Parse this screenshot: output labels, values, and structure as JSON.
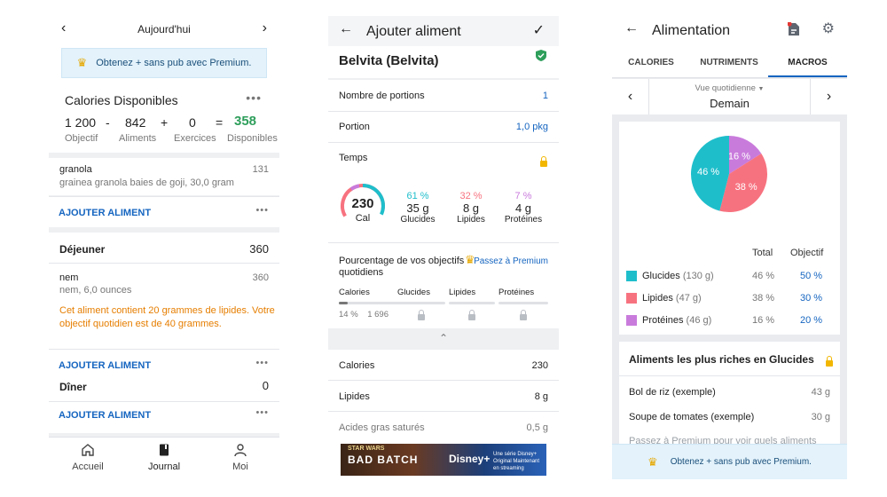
{
  "colors": {
    "accent": "#1565c0",
    "green": "#2e9e5b",
    "orange": "#e67e00",
    "teal": "#1fbecb",
    "coral": "#f7727f",
    "purple": "#c97bdc",
    "premium_bg": "#e3f2fb"
  },
  "journal": {
    "header": {
      "title": "Aujourd'hui",
      "prev_icon": "chevron-left-icon",
      "next_icon": "chevron-right-icon"
    },
    "premium_banner": "Obtenez + sans pub avec Premium.",
    "calories": {
      "title": "Calories Disponibles",
      "objective": "1 200",
      "objective_label": "Objectif",
      "minus": "-",
      "foods": "842",
      "foods_label": "Aliments",
      "plus": "+",
      "exercise": "0",
      "exercise_label": "Exercices",
      "equals": "=",
      "available": "358",
      "available_label": "Disponibles"
    },
    "breakfast_item": {
      "name": "granola",
      "detail": "grainea granola baies de goji, 30,0 gram",
      "calories": "131"
    },
    "add_food": "AJOUTER ALIMENT",
    "lunch": {
      "title": "Déjeuner",
      "total": "360",
      "item": {
        "name": "nem",
        "detail": "nem, 6,0 ounces",
        "calories": "360"
      },
      "warning": "Cet aliment contient 20 grammes de lipides. Votre objectif quotidien est de 40 grammes."
    },
    "dinner": {
      "title": "Dîner",
      "total": "0"
    },
    "nav": [
      {
        "label": "Accueil",
        "icon": "home-icon"
      },
      {
        "label": "Journal",
        "icon": "book-icon"
      },
      {
        "label": "Moi",
        "icon": "person-icon"
      }
    ]
  },
  "add_food": {
    "header": {
      "title": "Ajouter aliment"
    },
    "food_name": "Belvita (Belvita)",
    "servings_label": "Nombre de portions",
    "servings_value": "1",
    "portion_label": "Portion",
    "portion_value": "1,0 pkg",
    "time_label": "Temps",
    "ring": {
      "calories": "230",
      "unit": "Cal"
    },
    "macros": [
      {
        "pct": "61 %",
        "value": "35 g",
        "label": "Glucides"
      },
      {
        "pct": "32 %",
        "value": "8 g",
        "label": "Lipides"
      },
      {
        "pct": "7 %",
        "value": "4 g",
        "label": "Protéines"
      }
    ],
    "goals_title": "Pourcentage de vos objectifs quotidiens",
    "goals_premium": "Passez à Premium",
    "goal_cols": [
      {
        "label": "Calories",
        "pct": "14 %",
        "value": "1 696",
        "progress": 0.14
      },
      {
        "label": "Glucides"
      },
      {
        "label": "Lipides"
      },
      {
        "label": "Protéines"
      }
    ],
    "nutrients": [
      {
        "label": "Calories",
        "value": "230"
      },
      {
        "label": "Lipides",
        "value": "8 g"
      },
      {
        "label": "Acides gras saturés",
        "value": "0,5 g"
      }
    ],
    "ad": {
      "brand": "STAR WARS",
      "title": "BAD BATCH",
      "service": "Disney+",
      "caption": "Une série Disney+ Original Maintenant en streaming"
    }
  },
  "nutrition": {
    "header": {
      "title": "Alimentation"
    },
    "tabs": [
      "CALORIES",
      "NUTRIMENTS",
      "MACROS"
    ],
    "view_label": "Vue quotidienne",
    "day": "Demain",
    "chart_data": {
      "type": "pie",
      "categories": [
        "Glucides",
        "Lipides",
        "Protéines"
      ],
      "values": [
        46,
        38,
        16
      ],
      "labels": [
        "46 %",
        "38 %",
        "16 %"
      ],
      "colors": [
        "#1fbecb",
        "#f7727f",
        "#c97bdc"
      ]
    },
    "table_header": {
      "total": "Total",
      "goal": "Objectif"
    },
    "rows": [
      {
        "label": "Glucides",
        "amount": "(130 g)",
        "total": "46 %",
        "goal": "50 %"
      },
      {
        "label": "Lipides",
        "amount": "(47 g)",
        "total": "38 %",
        "goal": "30 %"
      },
      {
        "label": "Protéines",
        "amount": "(46 g)",
        "total": "16 %",
        "goal": "20 %"
      }
    ],
    "rich_title": "Aliments les plus riches en Glucides",
    "rich_items": [
      {
        "name": "Bol de riz (exemple)",
        "value": "43 g"
      },
      {
        "name": "Soupe de tomates (exemple)",
        "value": "30 g"
      }
    ],
    "rich_premium": "Passez à Premium pour voir quels aliments",
    "premium_banner": "Obtenez + sans pub avec Premium."
  }
}
